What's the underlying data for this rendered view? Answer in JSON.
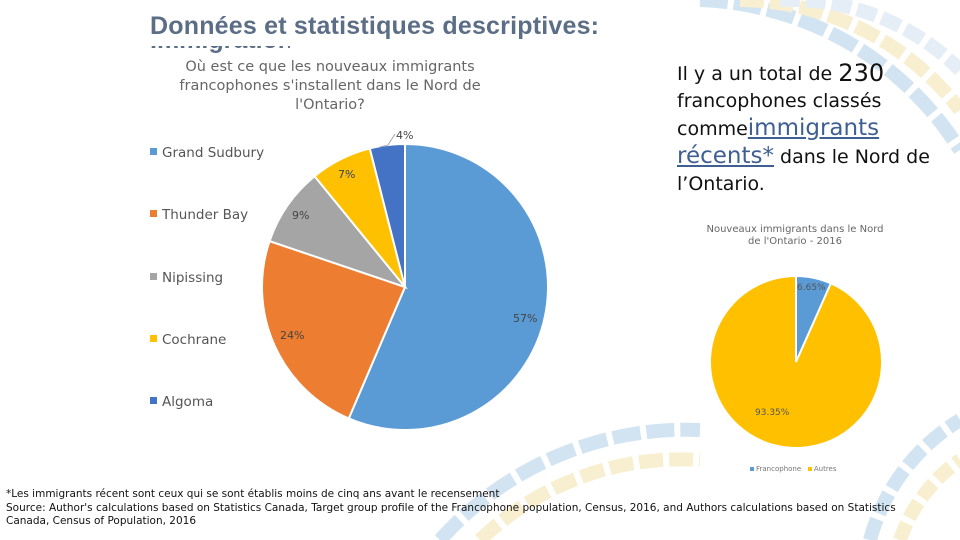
{
  "title": "Données et statistiques descriptives:",
  "title_clipped_line": "Immigration",
  "colors": {
    "blue": "#5b9bd5",
    "orange": "#ed7d31",
    "gray": "#a5a5a5",
    "yellow": "#ffc000",
    "darkblue": "#4472c4",
    "title": "#5b6e86",
    "link": "#3f5f93"
  },
  "right_text": {
    "part1": "Il y a un total de ",
    "number": "230",
    "part2": "francophones classés comme",
    "link": "immigrants récents*",
    "part3": " dans le Nord de l’Ontario."
  },
  "footnote": {
    "line1": "*Les immigrants récent sont ceux qui se sont établis moins de cinq ans avant le recensement",
    "line2": "Source: Author's calculations based on Statistics Canada, Target group profile of the Francophone population, Census, 2016, and Authors calculations based on Statistics Canada, Census of Population, 2016"
  },
  "chart_data": [
    {
      "type": "pie",
      "title": "Où est ce que les nouveaux immigrants francophones s'installent dans le Nord de l'Ontario?",
      "categories": [
        "Grand Sudbury",
        "Thunder Bay",
        "Nipissing",
        "Cochrane",
        "Algoma"
      ],
      "values": [
        57,
        24,
        9,
        7,
        4
      ],
      "labels": [
        "57%",
        "24%",
        "9%",
        "7%",
        "4%"
      ],
      "colors": [
        "#5b9bd5",
        "#ed7d31",
        "#a5a5a5",
        "#ffc000",
        "#4472c4"
      ],
      "legend": "left"
    },
    {
      "type": "pie",
      "title": "Nouveaux immigrants dans le Nord de l'Ontario - 2016",
      "categories": [
        "Francophone",
        "Autres"
      ],
      "values": [
        6.65,
        93.35
      ],
      "labels": [
        "6.65%",
        "93.35%"
      ],
      "colors": [
        "#5b9bd5",
        "#ffc000"
      ],
      "legend": "bottom"
    }
  ]
}
